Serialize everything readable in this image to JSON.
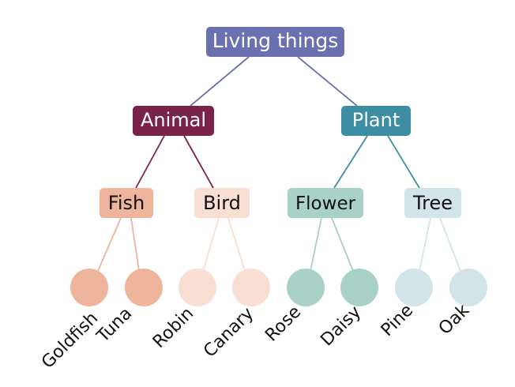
{
  "root": {
    "label": "Living things",
    "fill": "#6b70b0",
    "text_color": "#ffffff",
    "edge_color": "#6b70b0"
  },
  "kingdoms": [
    {
      "label": "Animal",
      "fill": "#7a2348",
      "text_color": "#ffffff",
      "edge_color": "#7a2348"
    },
    {
      "label": "Plant",
      "fill": "#3d8ea3",
      "text_color": "#ffffff",
      "edge_color": "#3d8ea3"
    }
  ],
  "groups": [
    {
      "label": "Fish",
      "fill": "#efb49c",
      "text_color": "#111111",
      "edge_color": "#efb49c"
    },
    {
      "label": "Bird",
      "fill": "#f8ded3",
      "text_color": "#111111",
      "edge_color": "#f8ded3"
    },
    {
      "label": "Flower",
      "fill": "#a9d1c7",
      "text_color": "#111111",
      "edge_color": "#a9d1c7"
    },
    {
      "label": "Tree",
      "fill": "#d3e5eb",
      "text_color": "#111111",
      "edge_color": "#d3e5eb"
    }
  ],
  "leaves": [
    {
      "label": "Goldfish",
      "fill": "#efb49c"
    },
    {
      "label": "Tuna",
      "fill": "#efb49c"
    },
    {
      "label": "Robin",
      "fill": "#f8ded3"
    },
    {
      "label": "Canary",
      "fill": "#f8ded3"
    },
    {
      "label": "Rose",
      "fill": "#a9d1c7"
    },
    {
      "label": "Daisy",
      "fill": "#a9d1c7"
    },
    {
      "label": "Pine",
      "fill": "#d3e5eb"
    },
    {
      "label": "Oak",
      "fill": "#d3e5eb"
    }
  ],
  "leaf_label_color": "#111111"
}
